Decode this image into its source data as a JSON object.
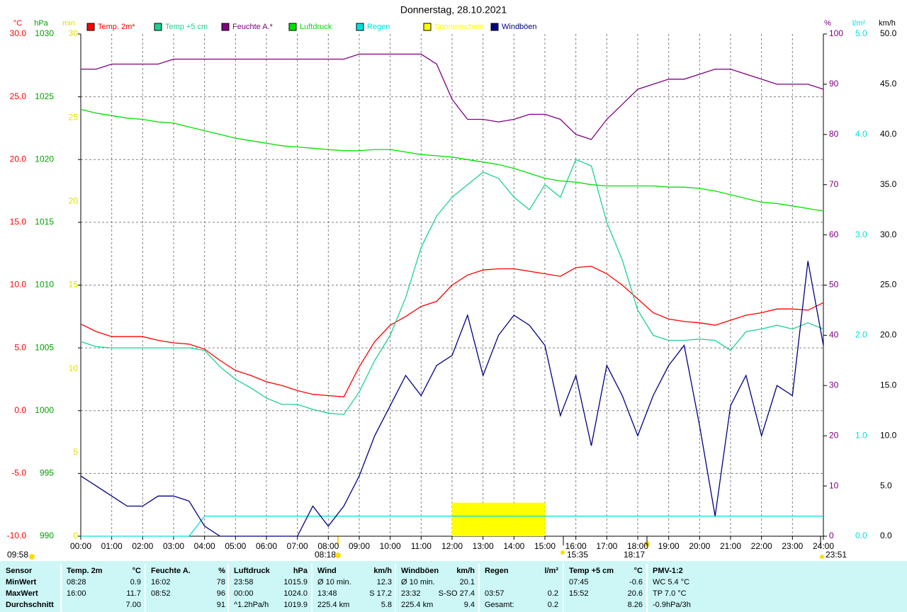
{
  "chart_data": {
    "type": "line",
    "title": "Donnerstag, 28.10.2021",
    "grid": true,
    "x": [
      0,
      0.5,
      1,
      1.5,
      2,
      2.5,
      3,
      3.5,
      4,
      4.5,
      5,
      5.5,
      6,
      6.5,
      7,
      7.5,
      8,
      8.5,
      9,
      9.5,
      10,
      10.5,
      11,
      11.5,
      12,
      12.5,
      13,
      13.5,
      14,
      14.5,
      15,
      15.5,
      16,
      16.5,
      17,
      17.5,
      18,
      18.5,
      19,
      19.5,
      20,
      20.5,
      21,
      21.5,
      22,
      22.5,
      23,
      23.5,
      24
    ],
    "xlim": [
      0,
      24
    ],
    "xticks": [
      {
        "value": 0,
        "label": "00:00"
      },
      {
        "value": 1,
        "label": "01:00"
      },
      {
        "value": 2,
        "label": "02:00"
      },
      {
        "value": 3,
        "label": "03:00"
      },
      {
        "value": 4,
        "label": "04:00"
      },
      {
        "value": 5,
        "label": "05:00"
      },
      {
        "value": 6,
        "label": "06:00"
      },
      {
        "value": 7,
        "label": "07:00"
      },
      {
        "value": 8,
        "label": "08:00"
      },
      {
        "value": 9,
        "label": "09:00"
      },
      {
        "value": 10,
        "label": "10:00"
      },
      {
        "value": 11,
        "label": "11:00"
      },
      {
        "value": 12,
        "label": "12:00"
      },
      {
        "value": 13,
        "label": "13:00"
      },
      {
        "value": 14,
        "label": "14:00"
      },
      {
        "value": 15,
        "label": "15:00"
      },
      {
        "value": 16,
        "label": "16:00"
      },
      {
        "value": 17,
        "label": "17:00"
      },
      {
        "value": 18,
        "label": "18:00"
      },
      {
        "value": 19,
        "label": "19:00"
      },
      {
        "value": 20,
        "label": "20:00"
      },
      {
        "value": 21,
        "label": "21:00"
      },
      {
        "value": 22,
        "label": "22:00"
      },
      {
        "value": 23,
        "label": "23:00"
      },
      {
        "value": 24,
        "label": "24:00"
      }
    ],
    "axes": [
      {
        "label": "°C",
        "color": "#ff0000",
        "lim": [
          -10,
          30
        ],
        "ticks": [
          {
            "value": 30,
            "label": "30.0"
          },
          {
            "value": 25,
            "label": "25.0"
          },
          {
            "value": 20,
            "label": "20.0"
          },
          {
            "value": 15,
            "label": "15.0"
          },
          {
            "value": 10,
            "label": "10.0"
          },
          {
            "value": 5,
            "label": "5.0"
          },
          {
            "value": 0,
            "label": "0.0"
          },
          {
            "value": -5,
            "label": "-5.0"
          },
          {
            "value": -10,
            "label": "-10.0"
          }
        ]
      },
      {
        "label": "hPa",
        "color": "#00a000",
        "lim": [
          990,
          1030
        ],
        "ticks": [
          1030,
          1025,
          1020,
          1015,
          1010,
          1005,
          1000,
          995,
          990
        ]
      },
      {
        "label": "min",
        "color": "#e0e000",
        "lim": [
          0,
          30
        ],
        "ticks": [
          30,
          25,
          20,
          15,
          10,
          5,
          0
        ]
      },
      {
        "label": "%",
        "color": "#800080",
        "lim": [
          0,
          100
        ],
        "ticks": [
          100,
          90,
          80,
          70,
          60,
          50,
          40,
          30,
          20,
          10,
          0
        ]
      },
      {
        "label": "l/m²",
        "color": "#00e0e0",
        "lim": [
          0,
          5
        ],
        "ticks": [
          {
            "value": 5,
            "label": "5.0"
          },
          {
            "value": 4,
            "label": "4.0"
          },
          {
            "value": 3,
            "label": "3.0"
          },
          {
            "value": 2,
            "label": "2.0"
          },
          {
            "value": 1,
            "label": "1.0"
          },
          {
            "value": 0,
            "label": "0.0"
          }
        ]
      },
      {
        "label": "km/h",
        "color": "#000000",
        "lim": [
          0,
          50
        ],
        "ticks": [
          {
            "value": 50,
            "label": "50.0"
          },
          {
            "value": 45,
            "label": "45.0"
          },
          {
            "value": 40,
            "label": "40.0"
          },
          {
            "value": 35,
            "label": "35.0"
          },
          {
            "value": 30,
            "label": "30.0"
          },
          {
            "value": 25,
            "label": "25.0"
          },
          {
            "value": 20,
            "label": "20.0"
          },
          {
            "value": 15,
            "label": "15.0"
          },
          {
            "value": 10,
            "label": "10.0"
          },
          {
            "value": 5,
            "label": "5.0"
          },
          {
            "value": 0,
            "label": "0.0"
          }
        ]
      }
    ],
    "series": [
      {
        "name": "Temp. 2m*",
        "color": "#ff0000",
        "axis": "°C",
        "type": "line",
        "values": [
          6.9,
          6.3,
          5.9,
          5.9,
          5.9,
          5.6,
          5.4,
          5.3,
          4.9,
          4.0,
          3.2,
          2.8,
          2.3,
          2.0,
          1.6,
          1.3,
          1.2,
          1.1,
          3.5,
          5.5,
          6.8,
          7.5,
          8.3,
          8.7,
          10.0,
          10.8,
          11.2,
          11.3,
          11.3,
          11.1,
          10.9,
          10.7,
          11.4,
          11.5,
          10.9,
          10.0,
          8.9,
          7.8,
          7.3,
          7.1,
          7.0,
          6.8,
          7.2,
          7.6,
          7.8,
          8.1,
          8.1,
          8.0,
          8.6
        ]
      },
      {
        "name": "Temp +5 cm",
        "color": "#20d090",
        "axis": "°C",
        "type": "line",
        "values": [
          5.5,
          5.1,
          5.0,
          5.0,
          5.0,
          5.0,
          5.0,
          5.0,
          4.8,
          3.5,
          2.5,
          1.8,
          1.0,
          0.5,
          0.5,
          0.1,
          -0.2,
          -0.3,
          1.5,
          4.0,
          6.0,
          9.0,
          13.0,
          15.5,
          17.0,
          18.0,
          19.0,
          18.5,
          17.0,
          16.0,
          18.0,
          17.0,
          20.0,
          19.5,
          15.0,
          12.0,
          8.0,
          6.0,
          5.6,
          5.6,
          5.7,
          5.6,
          4.8,
          6.3,
          6.5,
          6.8,
          6.5,
          7.0,
          6.5
        ]
      },
      {
        "name": "Feuchte A.*",
        "color": "#800080",
        "axis": "%",
        "type": "line",
        "values": [
          93,
          93,
          94,
          94,
          94,
          94,
          95,
          95,
          95,
          95,
          95,
          95,
          95,
          95,
          95,
          95,
          95,
          95,
          96,
          96,
          96,
          96,
          96,
          94,
          87,
          83,
          83,
          82.5,
          83,
          84,
          84,
          83,
          80,
          79,
          83,
          86,
          89,
          90,
          91,
          91,
          92,
          93,
          93,
          92,
          91,
          90,
          90,
          90,
          89
        ]
      },
      {
        "name": "Luftdruck",
        "color": "#00e000",
        "axis": "hPa",
        "type": "line",
        "values": [
          1024.0,
          1023.7,
          1023.5,
          1023.3,
          1023.2,
          1023.0,
          1022.9,
          1022.6,
          1022.3,
          1022.0,
          1021.7,
          1021.5,
          1021.3,
          1021.1,
          1021.0,
          1020.9,
          1020.8,
          1020.7,
          1020.7,
          1020.8,
          1020.8,
          1020.6,
          1020.4,
          1020.3,
          1020.2,
          1020.0,
          1019.8,
          1019.6,
          1019.3,
          1018.9,
          1018.5,
          1018.3,
          1018.2,
          1018.0,
          1017.9,
          1017.9,
          1017.9,
          1017.9,
          1017.8,
          1017.8,
          1017.7,
          1017.5,
          1017.2,
          1016.9,
          1016.6,
          1016.5,
          1016.3,
          1016.1,
          1015.9
        ]
      },
      {
        "name": "Regen",
        "color": "#00e0e0",
        "axis": "l/m²",
        "type": "line",
        "values": [
          0,
          0,
          0,
          0,
          0,
          0,
          0,
          0,
          0.2,
          0.2,
          0.2,
          0.2,
          0.2,
          0.2,
          0.2,
          0.2,
          0.2,
          0.2,
          0.2,
          0.2,
          0.2,
          0.2,
          0.2,
          0.2,
          0.2,
          0.2,
          0.2,
          0.2,
          0.2,
          0.2,
          0.2,
          0.2,
          0.2,
          0.2,
          0.2,
          0.2,
          0.2,
          0.2,
          0.2,
          0.2,
          0.2,
          0.2,
          0.2,
          0.2,
          0.2,
          0.2,
          0.2,
          0.2,
          0.2
        ]
      },
      {
        "name": "Sonnenschein",
        "color": "#ffff00",
        "axis": "min",
        "type": "bar",
        "values": [
          0,
          0,
          0,
          0,
          0,
          0,
          0,
          0,
          0,
          0,
          0,
          0,
          0,
          0,
          0,
          0,
          0,
          0,
          0,
          0,
          0,
          0,
          0,
          0,
          2,
          2,
          2,
          2,
          2,
          2,
          0,
          0,
          0,
          0,
          0,
          0,
          0,
          0,
          0,
          0,
          0,
          0,
          0,
          0,
          0,
          0,
          0,
          0,
          0
        ]
      },
      {
        "name": "Windböen",
        "color": "#000080",
        "axis": "km/h",
        "type": "line",
        "values": [
          6,
          5,
          4,
          3,
          3,
          4,
          4,
          3.5,
          1,
          0,
          0,
          0,
          0,
          0,
          0,
          3,
          1,
          3,
          6,
          10,
          13,
          16,
          14,
          17,
          18,
          22,
          16,
          20,
          22,
          21,
          19,
          12,
          16,
          9,
          17,
          14,
          10,
          14,
          17,
          19,
          11,
          2,
          13,
          16,
          10,
          15,
          14,
          27.4,
          19
        ]
      }
    ],
    "annotations": [
      "09:58",
      "08:18",
      "15:35",
      "18:17",
      "23:51"
    ]
  },
  "table": {
    "columns": [
      [
        "Sensor"
      ],
      [
        "Temp. 2m",
        "°C"
      ],
      [
        "Feuchte A.",
        "%"
      ],
      [
        "Luftdruck",
        "hPa"
      ],
      [
        "Wind",
        "km/h"
      ],
      [
        "Windböen",
        "km/h"
      ],
      [
        "Regen",
        "l/m²"
      ],
      [
        "Temp +5 cm",
        "°C"
      ],
      [
        "PMV-1:2"
      ]
    ],
    "rows": [
      {
        "label": "MinWert",
        "cells": [
          [
            "08:28",
            "0.9"
          ],
          [
            "16:02",
            "78"
          ],
          [
            "23:58",
            "1015.9"
          ],
          [
            "Ø 10 min.",
            "12.3"
          ],
          [
            "Ø 10 min.",
            "20.1"
          ],
          [],
          [
            "07:45",
            "-0.6"
          ],
          [
            "WC 5.4 °C"
          ]
        ]
      },
      {
        "label": "MaxWert",
        "cells": [
          [
            "16:00",
            "11.7"
          ],
          [
            "08:52",
            "96"
          ],
          [
            "00:00",
            "1024.0"
          ],
          [
            "13:48",
            "S 17.2"
          ],
          [
            "23:32",
            "S-SO 27.4"
          ],
          [
            "03:57",
            "0.2"
          ],
          [
            "15:52",
            "20.6"
          ],
          [
            "TP 7.0 °C"
          ]
        ]
      },
      {
        "label": "Durchschnitt",
        "cells": [
          [
            "7.00"
          ],
          [
            "91"
          ],
          [
            "^1.2hPa/h",
            "1019.9"
          ],
          [
            "225.4 km",
            "5.8"
          ],
          [
            "225.4 km",
            "9.4"
          ],
          [
            "Gesamt:",
            "0.2"
          ],
          [
            "8.26"
          ],
          [
            "-0.9hPa/3h"
          ]
        ]
      }
    ]
  }
}
